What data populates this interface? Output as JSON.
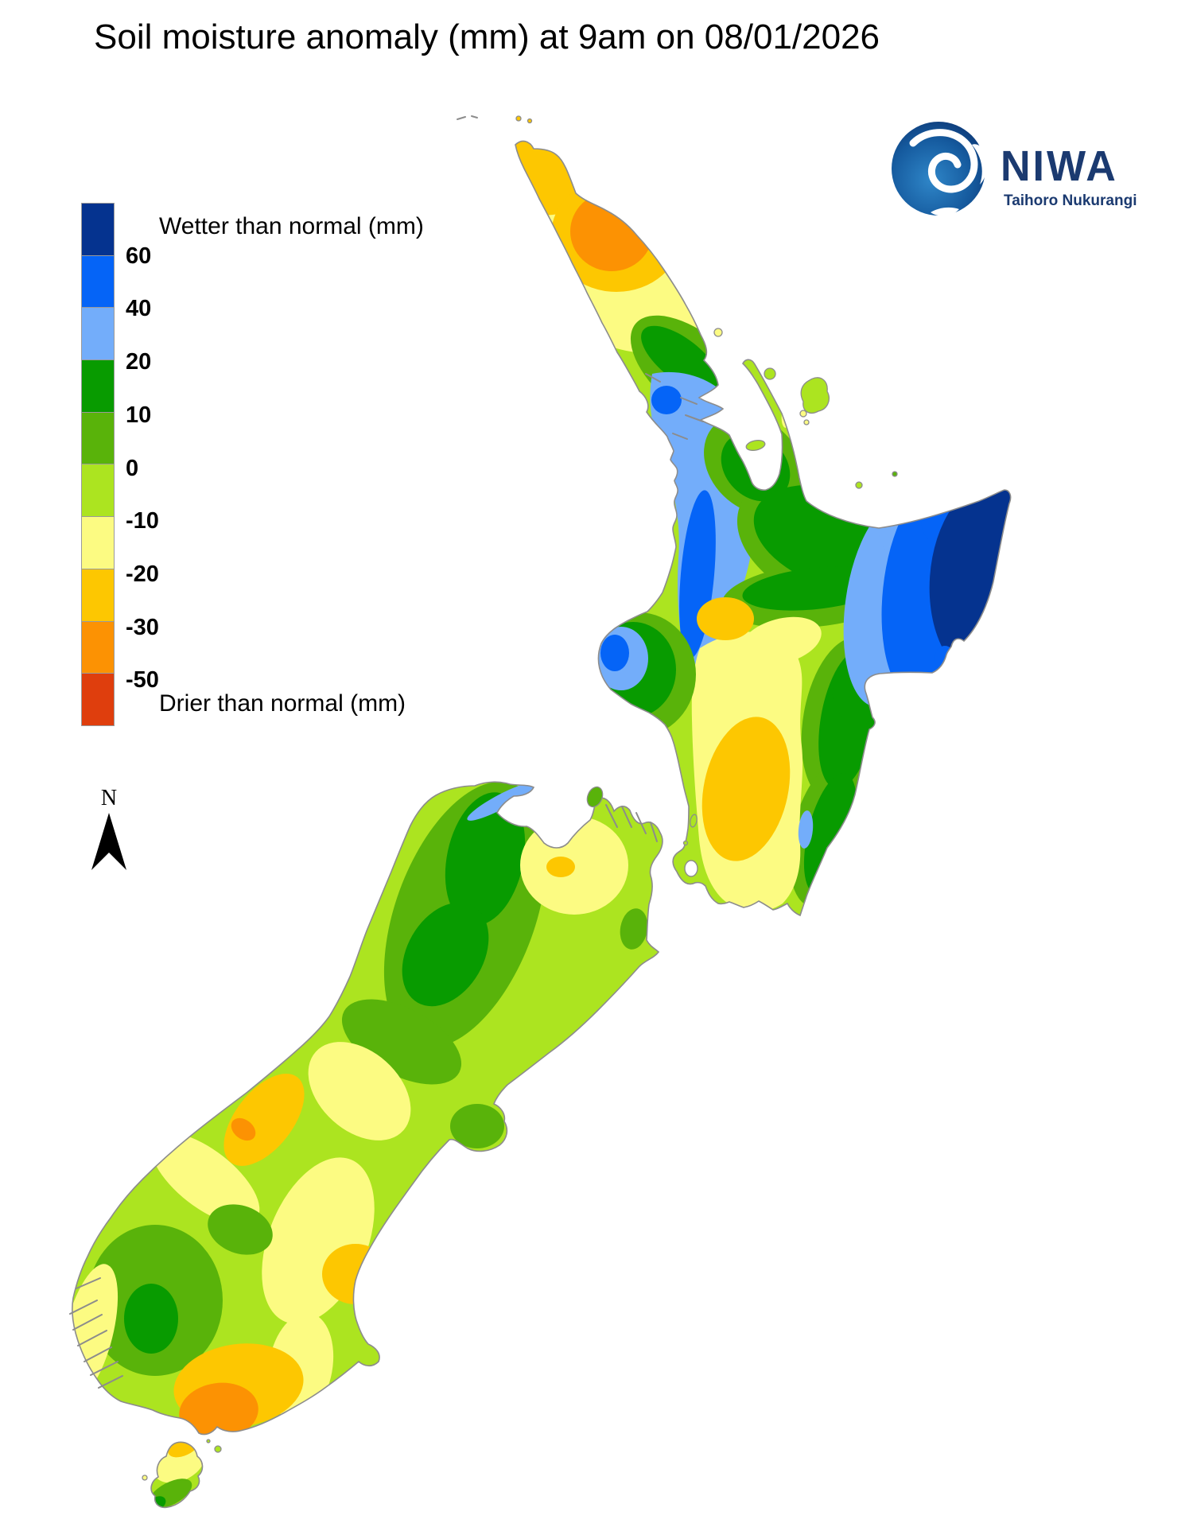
{
  "title": "Soil moisture anomaly (mm) at 9am on 08/01/2026",
  "logo": {
    "brand": "NIWA",
    "subtitle": "Taihoro Nukurangi"
  },
  "compass": {
    "label": "N"
  },
  "legend": {
    "wetter_label": "Wetter than normal (mm)",
    "drier_label": "Drier than normal (mm)",
    "cells": [
      {
        "color": "navy",
        "boundary_label": "60"
      },
      {
        "color": "blue",
        "boundary_label": "40"
      },
      {
        "color": "lightBlue",
        "boundary_label": "20"
      },
      {
        "color": "darkGreen",
        "boundary_label": "10"
      },
      {
        "color": "midGreen",
        "boundary_label": "0"
      },
      {
        "color": "lightGreen",
        "boundary_label": "-10"
      },
      {
        "color": "paleYellow",
        "boundary_label": "-20"
      },
      {
        "color": "golden",
        "boundary_label": "-30"
      },
      {
        "color": "orange",
        "boundary_label": "-50"
      },
      {
        "color": "redOrange",
        "boundary_label": ""
      }
    ]
  },
  "palette": {
    "navy": "#05338F",
    "blue": "#0564F7",
    "lightBlue": "#73ADFA",
    "darkGreen": "#089B00",
    "midGreen": "#59B30A",
    "lightGreen": "#ACE420",
    "paleYellow": "#FCFB82",
    "golden": "#FDC701",
    "orange": "#FC9203",
    "redOrange": "#DF3E0D",
    "coast": "#8C8C8C",
    "logoNavy": "#1B3A70"
  },
  "map_data": {
    "type": "contour_map",
    "region": "New Zealand",
    "variable": "Soil moisture anomaly",
    "units": "mm",
    "timestamp_label": "9am on 08/01/2026",
    "scale_breaks": [
      60,
      40,
      20,
      10,
      0,
      -10,
      -20,
      -30,
      -50
    ],
    "readings": [
      {
        "area": "Far north Northland core",
        "anomaly_band": "-30 to -50"
      },
      {
        "area": "Cape Reinga tip",
        "anomaly_band": "-20 to -30"
      },
      {
        "area": "Auckland and western Waikato",
        "anomaly_band": "20 to 40"
      },
      {
        "area": "West coast Waikato strip",
        "anomaly_band": "40 to 60"
      },
      {
        "area": "East Cape / Gisborne",
        "anomaly_band": "more than 60"
      },
      {
        "area": "Inland Hawke's Bay",
        "anomaly_band": "40 to 60"
      },
      {
        "area": "Central plateau and Bay of Plenty",
        "anomaly_band": "10 to 20"
      },
      {
        "area": "Taranaki cape",
        "anomaly_band": "40 to 60"
      },
      {
        "area": "Taupo dry spot",
        "anomaly_band": "-20 to -30"
      },
      {
        "area": "Southern Wairarapa / Kapiti",
        "anomaly_band": "-20 to -30"
      },
      {
        "area": "North-west Nelson / Buller",
        "anomaly_band": "10 to 20"
      },
      {
        "area": "Golden Bay shore",
        "anomaly_band": "20 to 40"
      },
      {
        "area": "Nelson city area",
        "anomaly_band": "-10 to -20 with -20 to -30 spot"
      },
      {
        "area": "Canterbury east coast",
        "anomaly_band": "0 to -10"
      },
      {
        "area": "West Coast near Hokitika",
        "anomaly_band": "-20 to -50"
      },
      {
        "area": "Inland Otago",
        "anomaly_band": "-10 to -20"
      },
      {
        "area": "Western Southland / Fiordland edge",
        "anomaly_band": "0 to 10"
      },
      {
        "area": "South coast near Invercargill",
        "anomaly_band": "-30 to -50"
      },
      {
        "area": "Stewart Island north tip",
        "anomaly_band": "-20 to -30"
      },
      {
        "area": "Stewart Island south tip",
        "anomaly_band": "10 to 20"
      }
    ]
  }
}
